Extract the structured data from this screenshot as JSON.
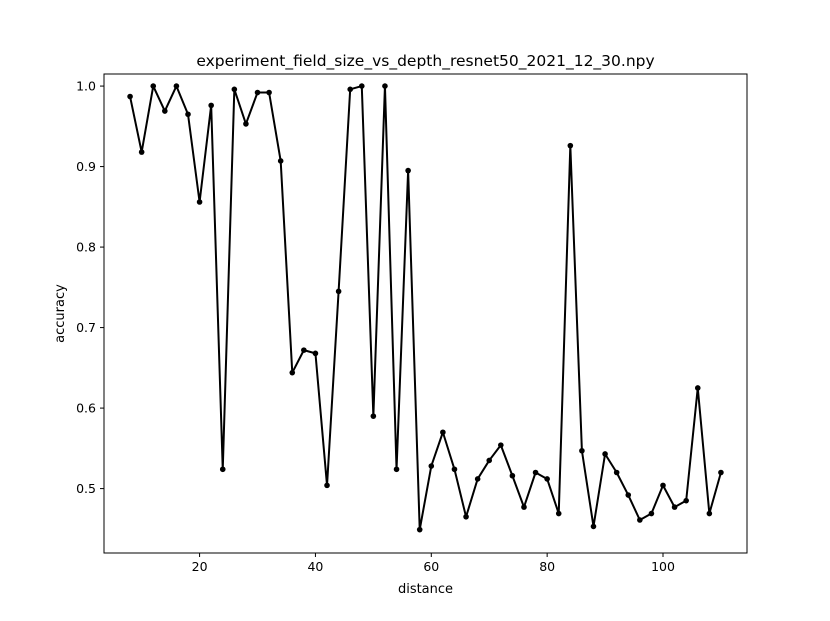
{
  "chart_data": {
    "type": "line",
    "title": "experiment_field_size_vs_depth_resnet50_2021_12_30.npy",
    "xlabel": "distance",
    "ylabel": "accuracy",
    "xlim": [
      3.5,
      114.5
    ],
    "ylim": [
      0.42,
      1.015
    ],
    "xticks": [
      20,
      40,
      60,
      80,
      100
    ],
    "yticks": [
      0.5,
      0.6,
      0.7,
      0.8,
      0.9,
      1.0
    ],
    "ytick_labels": [
      "0.5",
      "0.6",
      "0.7",
      "0.8",
      "0.9",
      "1.0"
    ],
    "grid": false,
    "line_color": "#000000",
    "marker": "circle",
    "series": [
      {
        "x": [
          8,
          10,
          12,
          14,
          16,
          18,
          20,
          22,
          24,
          26,
          28,
          30,
          32,
          34,
          36,
          38,
          40,
          42,
          44,
          46,
          48,
          50,
          52,
          54,
          56,
          58,
          60,
          62,
          64,
          66,
          68,
          70,
          72,
          74,
          76,
          78,
          80,
          82,
          84,
          86,
          88,
          90,
          92,
          94,
          96,
          98,
          100,
          102,
          104,
          106,
          108,
          110
        ],
        "y": [
          0.987,
          0.918,
          1.0,
          0.969,
          1.0,
          0.965,
          0.856,
          0.976,
          0.524,
          0.996,
          0.953,
          0.992,
          0.992,
          0.907,
          0.644,
          0.672,
          0.668,
          0.504,
          0.745,
          0.996,
          1.0,
          0.59,
          1.0,
          0.524,
          0.895,
          0.449,
          0.528,
          0.57,
          0.524,
          0.465,
          0.512,
          0.535,
          0.554,
          0.516,
          0.477,
          0.52,
          0.512,
          0.469,
          0.926,
          0.547,
          0.453,
          0.543,
          0.52,
          0.492,
          0.461,
          0.469,
          0.504,
          0.477,
          0.485,
          0.625,
          0.469,
          0.52
        ]
      }
    ]
  }
}
